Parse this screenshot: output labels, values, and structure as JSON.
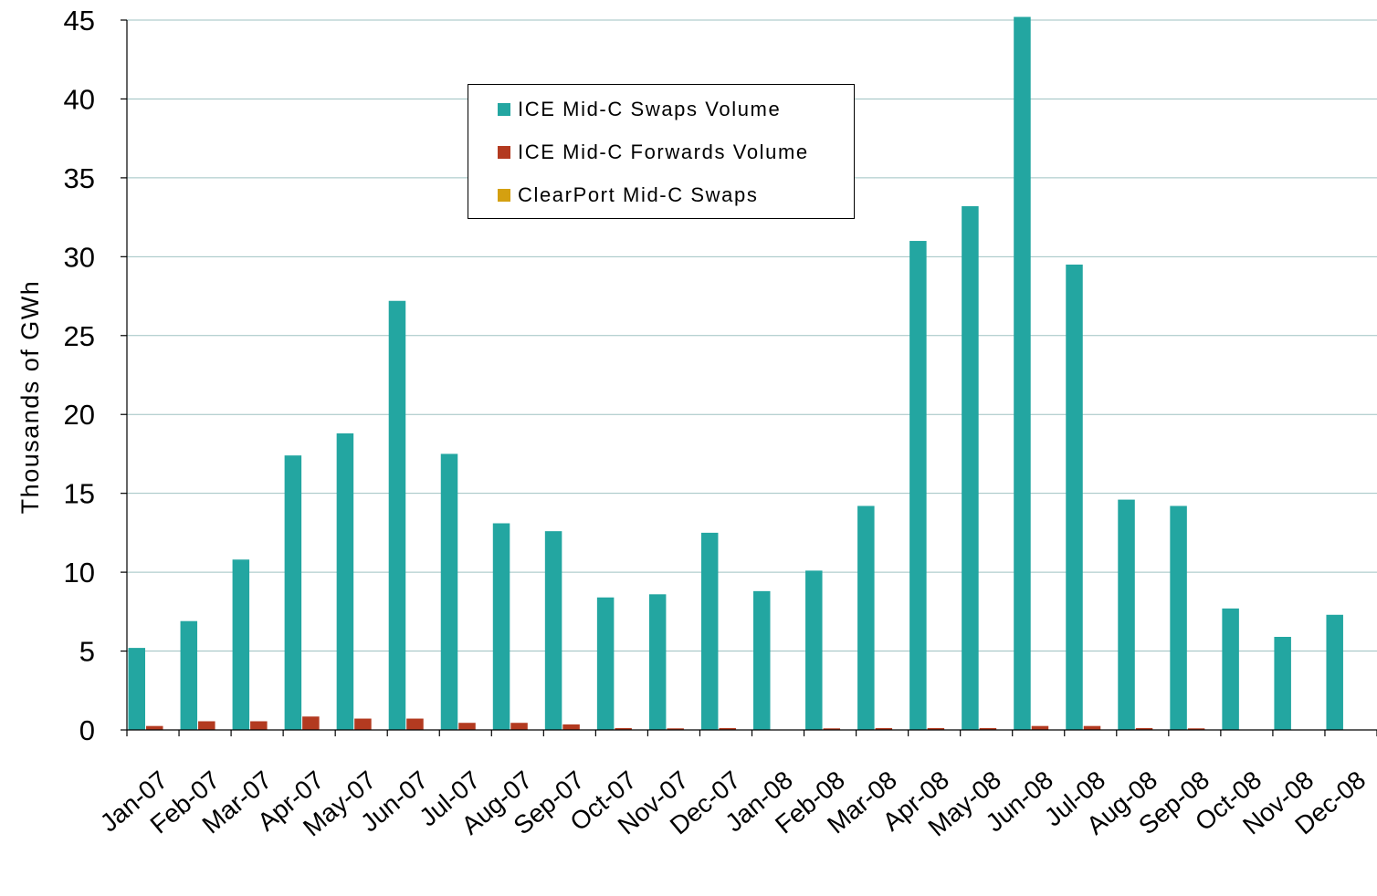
{
  "chart_data": {
    "type": "bar",
    "title": "",
    "xlabel": "",
    "ylabel": "Thousands of GWh",
    "ylim": [
      0,
      45
    ],
    "yticks": [
      0,
      5,
      10,
      15,
      20,
      25,
      30,
      35,
      40,
      45
    ],
    "grid": true,
    "legend_position": "top-center",
    "categories": [
      "Jan-07",
      "Feb-07",
      "Mar-07",
      "Apr-07",
      "May-07",
      "Jun-07",
      "Jul-07",
      "Aug-07",
      "Sep-07",
      "Oct-07",
      "Nov-07",
      "Dec-07",
      "Jan-08",
      "Feb-08",
      "Mar-08",
      "Apr-08",
      "May-08",
      "Jun-08",
      "Jul-08",
      "Aug-08",
      "Sep-08",
      "Oct-08",
      "Nov-08",
      "Dec-08"
    ],
    "series": [
      {
        "name": "ICE Mid-C Swaps Volume",
        "color": "#23a6a1",
        "values": [
          5.2,
          6.9,
          10.8,
          17.4,
          18.8,
          27.2,
          17.5,
          13.1,
          12.6,
          8.4,
          8.6,
          12.5,
          8.8,
          10.1,
          14.2,
          31.0,
          33.2,
          45.2,
          29.5,
          14.6,
          14.2,
          7.7,
          5.9,
          7.3
        ]
      },
      {
        "name": "ICE Mid-C Forwards Volume",
        "color": "#b33a20",
        "values": [
          0.25,
          0.55,
          0.55,
          0.85,
          0.72,
          0.72,
          0.45,
          0.45,
          0.35,
          0.12,
          0.1,
          0.12,
          0.0,
          0.1,
          0.12,
          0.12,
          0.12,
          0.25,
          0.25,
          0.12,
          0.1,
          0.0,
          0.0,
          0.0
        ]
      },
      {
        "name": "ClearPort Mid-C Swaps",
        "color": "#d4a010",
        "values": [
          0,
          0,
          0,
          0,
          0,
          0,
          0,
          0,
          0,
          0,
          0,
          0,
          0,
          0,
          0,
          0,
          0,
          0,
          0,
          0,
          0,
          0,
          0,
          0
        ]
      }
    ]
  }
}
